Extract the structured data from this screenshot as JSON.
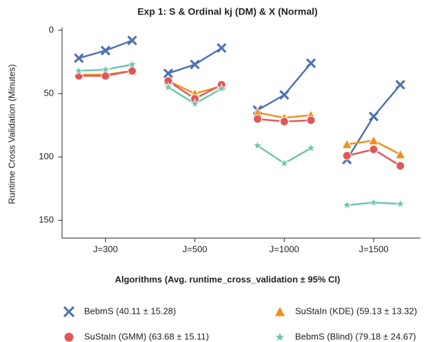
{
  "chart_data": {
    "type": "line",
    "title": "Exp 1: S & Ordinal kj (DM) & X (Normal)",
    "y_label": "Runtime Cross Validation (Minutes)",
    "legend_title": "Algorithms (Avg. runtime_cross_validation ± 95% CI)",
    "categories": [
      null,
      "J=300",
      null,
      null,
      null,
      "J=500",
      null,
      null,
      null,
      "J=1000",
      null,
      null,
      null,
      "J=1500",
      null
    ],
    "ylim": [
      0,
      164
    ],
    "yticks": [
      0,
      50,
      100,
      150
    ],
    "invert_y": true,
    "series": [
      {
        "name": "BebmS (40.11 ± 15.28)",
        "color": "#4c72b0",
        "marker": "x",
        "values": [
          22,
          16,
          8,
          null,
          34,
          27,
          14,
          null,
          63,
          51,
          26,
          null,
          102,
          68,
          43
        ]
      },
      {
        "name": "SuStaIn (KDE) (59.13 ± 13.32)",
        "color": "#f0901c",
        "marker": "triangle",
        "values": [
          35,
          35,
          32,
          null,
          40,
          50,
          44,
          null,
          65,
          69,
          67,
          null,
          90,
          87,
          98
        ]
      },
      {
        "name": "SuStaIn (GMM) (63.68 ± 15.11)",
        "color": "#e15759",
        "marker": "circle",
        "values": [
          36,
          36,
          32,
          null,
          40,
          54,
          43,
          null,
          70,
          72,
          71,
          null,
          99,
          94,
          107
        ]
      },
      {
        "name": "BebmS (Blind) (79.18 ± 24.67)",
        "color": "#6cc5b0",
        "marker": "star",
        "values": [
          32,
          31,
          27,
          null,
          45,
          58,
          46,
          null,
          91,
          105,
          93,
          null,
          138,
          136,
          137
        ]
      }
    ]
  }
}
